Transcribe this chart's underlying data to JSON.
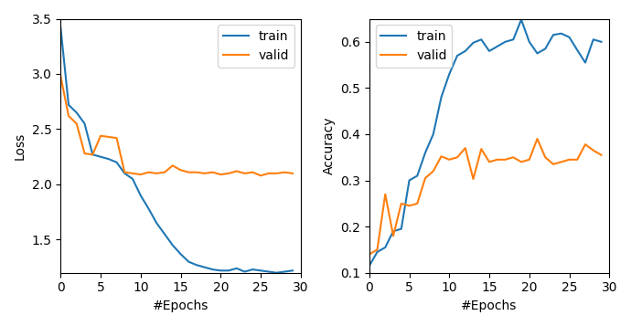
{
  "loss_train": [
    3.42,
    2.72,
    2.65,
    2.55,
    2.27,
    2.25,
    2.23,
    2.2,
    2.1,
    2.05,
    1.9,
    1.78,
    1.65,
    1.55,
    1.45,
    1.37,
    1.3,
    1.27,
    1.25,
    1.23,
    1.22,
    1.22,
    1.24,
    1.21,
    1.23,
    1.22,
    1.21,
    1.2,
    1.21,
    1.22
  ],
  "loss_valid": [
    2.98,
    2.62,
    2.55,
    2.28,
    2.27,
    2.44,
    2.43,
    2.42,
    2.11,
    2.1,
    2.09,
    2.11,
    2.1,
    2.11,
    2.17,
    2.13,
    2.11,
    2.11,
    2.1,
    2.11,
    2.09,
    2.1,
    2.12,
    2.1,
    2.11,
    2.08,
    2.1,
    2.1,
    2.11,
    2.1
  ],
  "acc_train": [
    0.115,
    0.145,
    0.155,
    0.19,
    0.195,
    0.3,
    0.31,
    0.36,
    0.4,
    0.48,
    0.53,
    0.57,
    0.58,
    0.598,
    0.605,
    0.58,
    0.59,
    0.6,
    0.605,
    0.648,
    0.6,
    0.575,
    0.585,
    0.615,
    0.618,
    0.61,
    0.582,
    0.555,
    0.605,
    0.6
  ],
  "acc_valid": [
    0.14,
    0.15,
    0.27,
    0.18,
    0.25,
    0.245,
    0.25,
    0.305,
    0.32,
    0.352,
    0.345,
    0.35,
    0.37,
    0.303,
    0.368,
    0.34,
    0.345,
    0.345,
    0.35,
    0.34,
    0.345,
    0.39,
    0.35,
    0.335,
    0.34,
    0.345,
    0.345,
    0.378,
    0.365,
    0.355
  ],
  "epochs": 30,
  "loss_ylim": [
    1.2,
    3.5
  ],
  "acc_ylim": [
    0.1,
    0.65
  ],
  "loss_yticks": [
    1.5,
    2.0,
    2.5,
    3.0,
    3.5
  ],
  "acc_yticks": [
    0.1,
    0.2,
    0.3,
    0.4,
    0.5,
    0.6
  ],
  "xticks": [
    0,
    5,
    10,
    15,
    20,
    25,
    30
  ],
  "xlabel": "#Epochs",
  "loss_ylabel": "Loss",
  "acc_ylabel": "Accuracy",
  "train_color": "#1f77b4",
  "valid_color": "#ff7f0e",
  "legend_labels": [
    "train",
    "valid"
  ]
}
